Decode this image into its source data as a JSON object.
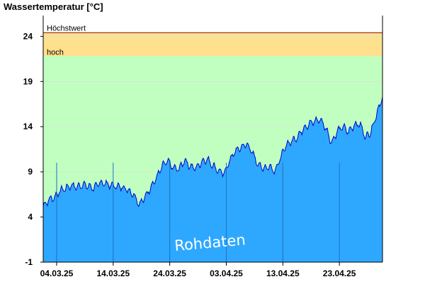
{
  "chart_data": {
    "type": "area",
    "ylabel": "Wassertemperatur [°C]",
    "ylim": [
      -1,
      26.3
    ],
    "x_range": [
      "2025-03-02",
      "2025-05-01"
    ],
    "y_ticks": [
      {
        "value": 24,
        "label": "24"
      },
      {
        "value": 19,
        "label": "19"
      },
      {
        "value": 14,
        "label": "14"
      },
      {
        "value": 9,
        "label": "9"
      },
      {
        "value": 4,
        "label": "4"
      },
      {
        "value": -1,
        "label": "-1"
      }
    ],
    "x_ticks": [
      {
        "date": "2025-03-04",
        "label": "04.03.25"
      },
      {
        "date": "2025-03-14",
        "label": "14.03.25"
      },
      {
        "date": "2025-03-24",
        "label": "24.03.25"
      },
      {
        "date": "2025-04-03",
        "label": "03.04.25"
      },
      {
        "date": "2025-04-13",
        "label": "13.04.25"
      },
      {
        "date": "2025-04-23",
        "label": "23.04.25"
      }
    ],
    "zones": [
      {
        "label": "Höchstwert",
        "value": 24.4,
        "color": "#8b0000"
      },
      {
        "label": "hoch",
        "from": 21.8,
        "to": 24.4,
        "color": "#ffe08c"
      },
      {
        "label": "",
        "from": -1,
        "to": 21.8,
        "color": "#c0ffc0"
      }
    ],
    "series": [
      {
        "area_color": "#2ea8ff",
        "line_color": "#0000cc",
        "points": [
          [
            "2025-03-02",
            5.2
          ],
          [
            "2025-03-03",
            5.9
          ],
          [
            "2025-03-04",
            6.2
          ],
          [
            "2025-03-05",
            6.9
          ],
          [
            "2025-03-06",
            7.2
          ],
          [
            "2025-03-07",
            7.5
          ],
          [
            "2025-03-08",
            7.3
          ],
          [
            "2025-03-09",
            7.6
          ],
          [
            "2025-03-10",
            7.4
          ],
          [
            "2025-03-11",
            7.2
          ],
          [
            "2025-03-12",
            7.8
          ],
          [
            "2025-03-13",
            7.7
          ],
          [
            "2025-03-14",
            7.5
          ],
          [
            "2025-03-15",
            7.4
          ],
          [
            "2025-03-16",
            7.3
          ],
          [
            "2025-03-17",
            7.0
          ],
          [
            "2025-03-18",
            6.5
          ],
          [
            "2025-03-19",
            5.4
          ],
          [
            "2025-03-20",
            6.2
          ],
          [
            "2025-03-21",
            7.3
          ],
          [
            "2025-03-22",
            8.3
          ],
          [
            "2025-03-23",
            9.6
          ],
          [
            "2025-03-24",
            10.2
          ],
          [
            "2025-03-25",
            9.4
          ],
          [
            "2025-03-26",
            9.3
          ],
          [
            "2025-03-27",
            10.3
          ],
          [
            "2025-03-28",
            9.6
          ],
          [
            "2025-03-29",
            9.4
          ],
          [
            "2025-03-30",
            10.1
          ],
          [
            "2025-03-31",
            10.4
          ],
          [
            "2025-04-01",
            9.7
          ],
          [
            "2025-04-02",
            9.1
          ],
          [
            "2025-04-03",
            8.8
          ],
          [
            "2025-04-04",
            10.3
          ],
          [
            "2025-04-05",
            11.3
          ],
          [
            "2025-04-06",
            11.7
          ],
          [
            "2025-04-07",
            12.1
          ],
          [
            "2025-04-08",
            11.1
          ],
          [
            "2025-04-09",
            9.8
          ],
          [
            "2025-04-10",
            9.4
          ],
          [
            "2025-04-11",
            9.6
          ],
          [
            "2025-04-12",
            9.1
          ],
          [
            "2025-04-13",
            10.6
          ],
          [
            "2025-04-14",
            12.0
          ],
          [
            "2025-04-15",
            12.4
          ],
          [
            "2025-04-16",
            12.9
          ],
          [
            "2025-04-17",
            13.8
          ],
          [
            "2025-04-18",
            14.3
          ],
          [
            "2025-04-19",
            14.6
          ],
          [
            "2025-04-20",
            14.8
          ],
          [
            "2025-04-21",
            13.8
          ],
          [
            "2025-04-22",
            12.2
          ],
          [
            "2025-04-23",
            13.5
          ],
          [
            "2025-04-24",
            14.0
          ],
          [
            "2025-04-25",
            13.4
          ],
          [
            "2025-04-26",
            14.2
          ],
          [
            "2025-04-27",
            14.3
          ],
          [
            "2025-04-28",
            12.8
          ],
          [
            "2025-04-29",
            13.5
          ],
          [
            "2025-04-30",
            15.5
          ],
          [
            "2025-05-01",
            17.3
          ]
        ]
      }
    ],
    "watermark": "Rohdaten",
    "grid": true
  }
}
